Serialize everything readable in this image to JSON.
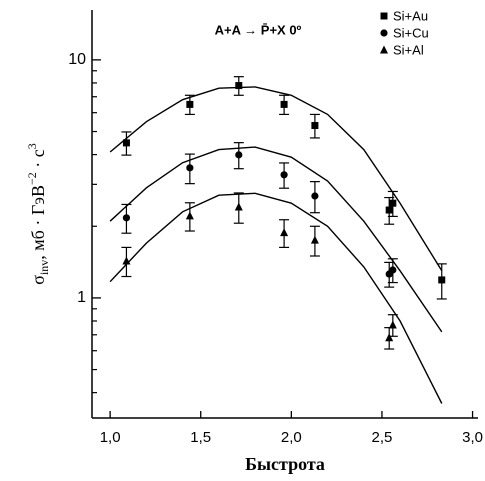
{
  "chart_data": {
    "type": "scatter",
    "title": "A+A → P̄+X  0º",
    "x_label": "Быстрота",
    "y_label": [
      "σ",
      "inv",
      ", мб · ГэВ",
      "−2",
      " · с",
      "3"
    ],
    "xlim": [
      0.9,
      3.03
    ],
    "ylim": [
      0.313,
      16.2
    ],
    "log_y": true,
    "xticks": [
      {
        "value": 1.0,
        "label": "1,0"
      },
      {
        "value": 1.5,
        "label": "1,5"
      },
      {
        "value": 2.0,
        "label": "2,0"
      },
      {
        "value": 2.5,
        "label": "2,5"
      },
      {
        "value": 3.0,
        "label": "3,0"
      }
    ],
    "yticks": [
      1,
      10
    ],
    "legend": "top-right",
    "series": [
      {
        "name": "Si+Au",
        "marker": "square",
        "color": "#000000",
        "x": [
          1.09,
          1.44,
          1.71,
          1.96,
          2.13,
          2.54,
          2.56,
          2.83
        ],
        "values": [
          4.48,
          6.5,
          7.8,
          6.5,
          5.3,
          2.34,
          2.5,
          1.19
        ],
        "errors": [
          0.5,
          0.6,
          0.7,
          0.6,
          0.6,
          0.3,
          0.3,
          0.2
        ]
      },
      {
        "name": "Si+Cu",
        "marker": "circle",
        "color": "#000000",
        "x": [
          1.09,
          1.44,
          1.71,
          1.96,
          2.13,
          2.54,
          2.56
        ],
        "values": [
          2.17,
          3.52,
          3.99,
          3.29,
          2.68,
          1.26,
          1.31
        ],
        "errors": [
          0.3,
          0.5,
          0.5,
          0.4,
          0.4,
          0.15,
          0.15
        ]
      },
      {
        "name": "Si+Al",
        "marker": "triangle",
        "color": "#000000",
        "x": [
          1.09,
          1.44,
          1.71,
          1.96,
          2.13,
          2.54,
          2.56
        ],
        "values": [
          1.43,
          2.21,
          2.41,
          1.88,
          1.75,
          0.68,
          0.77
        ],
        "errors": [
          0.2,
          0.3,
          0.35,
          0.25,
          0.25,
          0.07,
          0.08
        ]
      }
    ],
    "curves": [
      {
        "x": [
          1.0,
          1.2,
          1.4,
          1.6,
          1.8,
          2.0,
          2.2,
          2.4,
          2.6,
          2.83
        ],
        "values": [
          4.1,
          5.5,
          6.8,
          7.6,
          7.7,
          7.1,
          5.9,
          4.2,
          2.5,
          1.3
        ]
      },
      {
        "x": [
          1.0,
          1.2,
          1.4,
          1.6,
          1.8,
          2.0,
          2.2,
          2.4,
          2.6,
          2.83
        ],
        "values": [
          2.1,
          2.9,
          3.7,
          4.2,
          4.3,
          3.9,
          3.1,
          2.1,
          1.3,
          0.72
        ]
      },
      {
        "x": [
          1.0,
          1.2,
          1.4,
          1.6,
          1.8,
          2.0,
          2.2,
          2.4,
          2.6,
          2.83
        ],
        "values": [
          1.17,
          1.7,
          2.3,
          2.7,
          2.75,
          2.5,
          2.0,
          1.35,
          0.8,
          0.36
        ]
      }
    ]
  }
}
